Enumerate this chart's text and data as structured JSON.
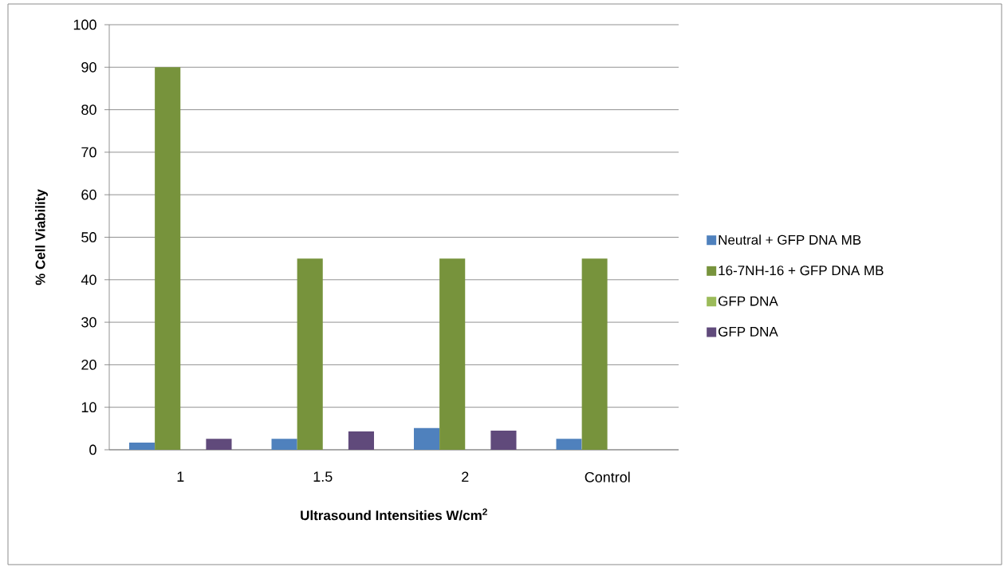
{
  "chart_data": {
    "type": "bar",
    "xlabel": "Ultrasound Intensities W/cm$^{2}$",
    "ylabel": "% Cell Viability",
    "categories": [
      "1",
      "1.5",
      "2",
      "Control"
    ],
    "series": [
      {
        "name": "Neutral + GFP DNA MB",
        "color": "#4f81bd",
        "values": [
          1.7,
          2.6,
          5.1,
          2.6
        ]
      },
      {
        "name": "16-7NH-16 + GFP DNA MB",
        "color": "#77933c",
        "values": [
          90,
          45,
          45,
          45
        ]
      },
      {
        "name": "GFP DNA",
        "color": "#9bbb59",
        "values": [
          null,
          null,
          null,
          null
        ]
      },
      {
        "name": "GFP DNA",
        "color": "#604a7b",
        "values": [
          2.6,
          4.3,
          4.5,
          null
        ]
      }
    ],
    "ylim": [
      0,
      100
    ],
    "yticks": [
      0,
      10,
      20,
      30,
      40,
      50,
      60,
      70,
      80,
      90,
      100
    ],
    "grid": "y",
    "legend": "right"
  }
}
